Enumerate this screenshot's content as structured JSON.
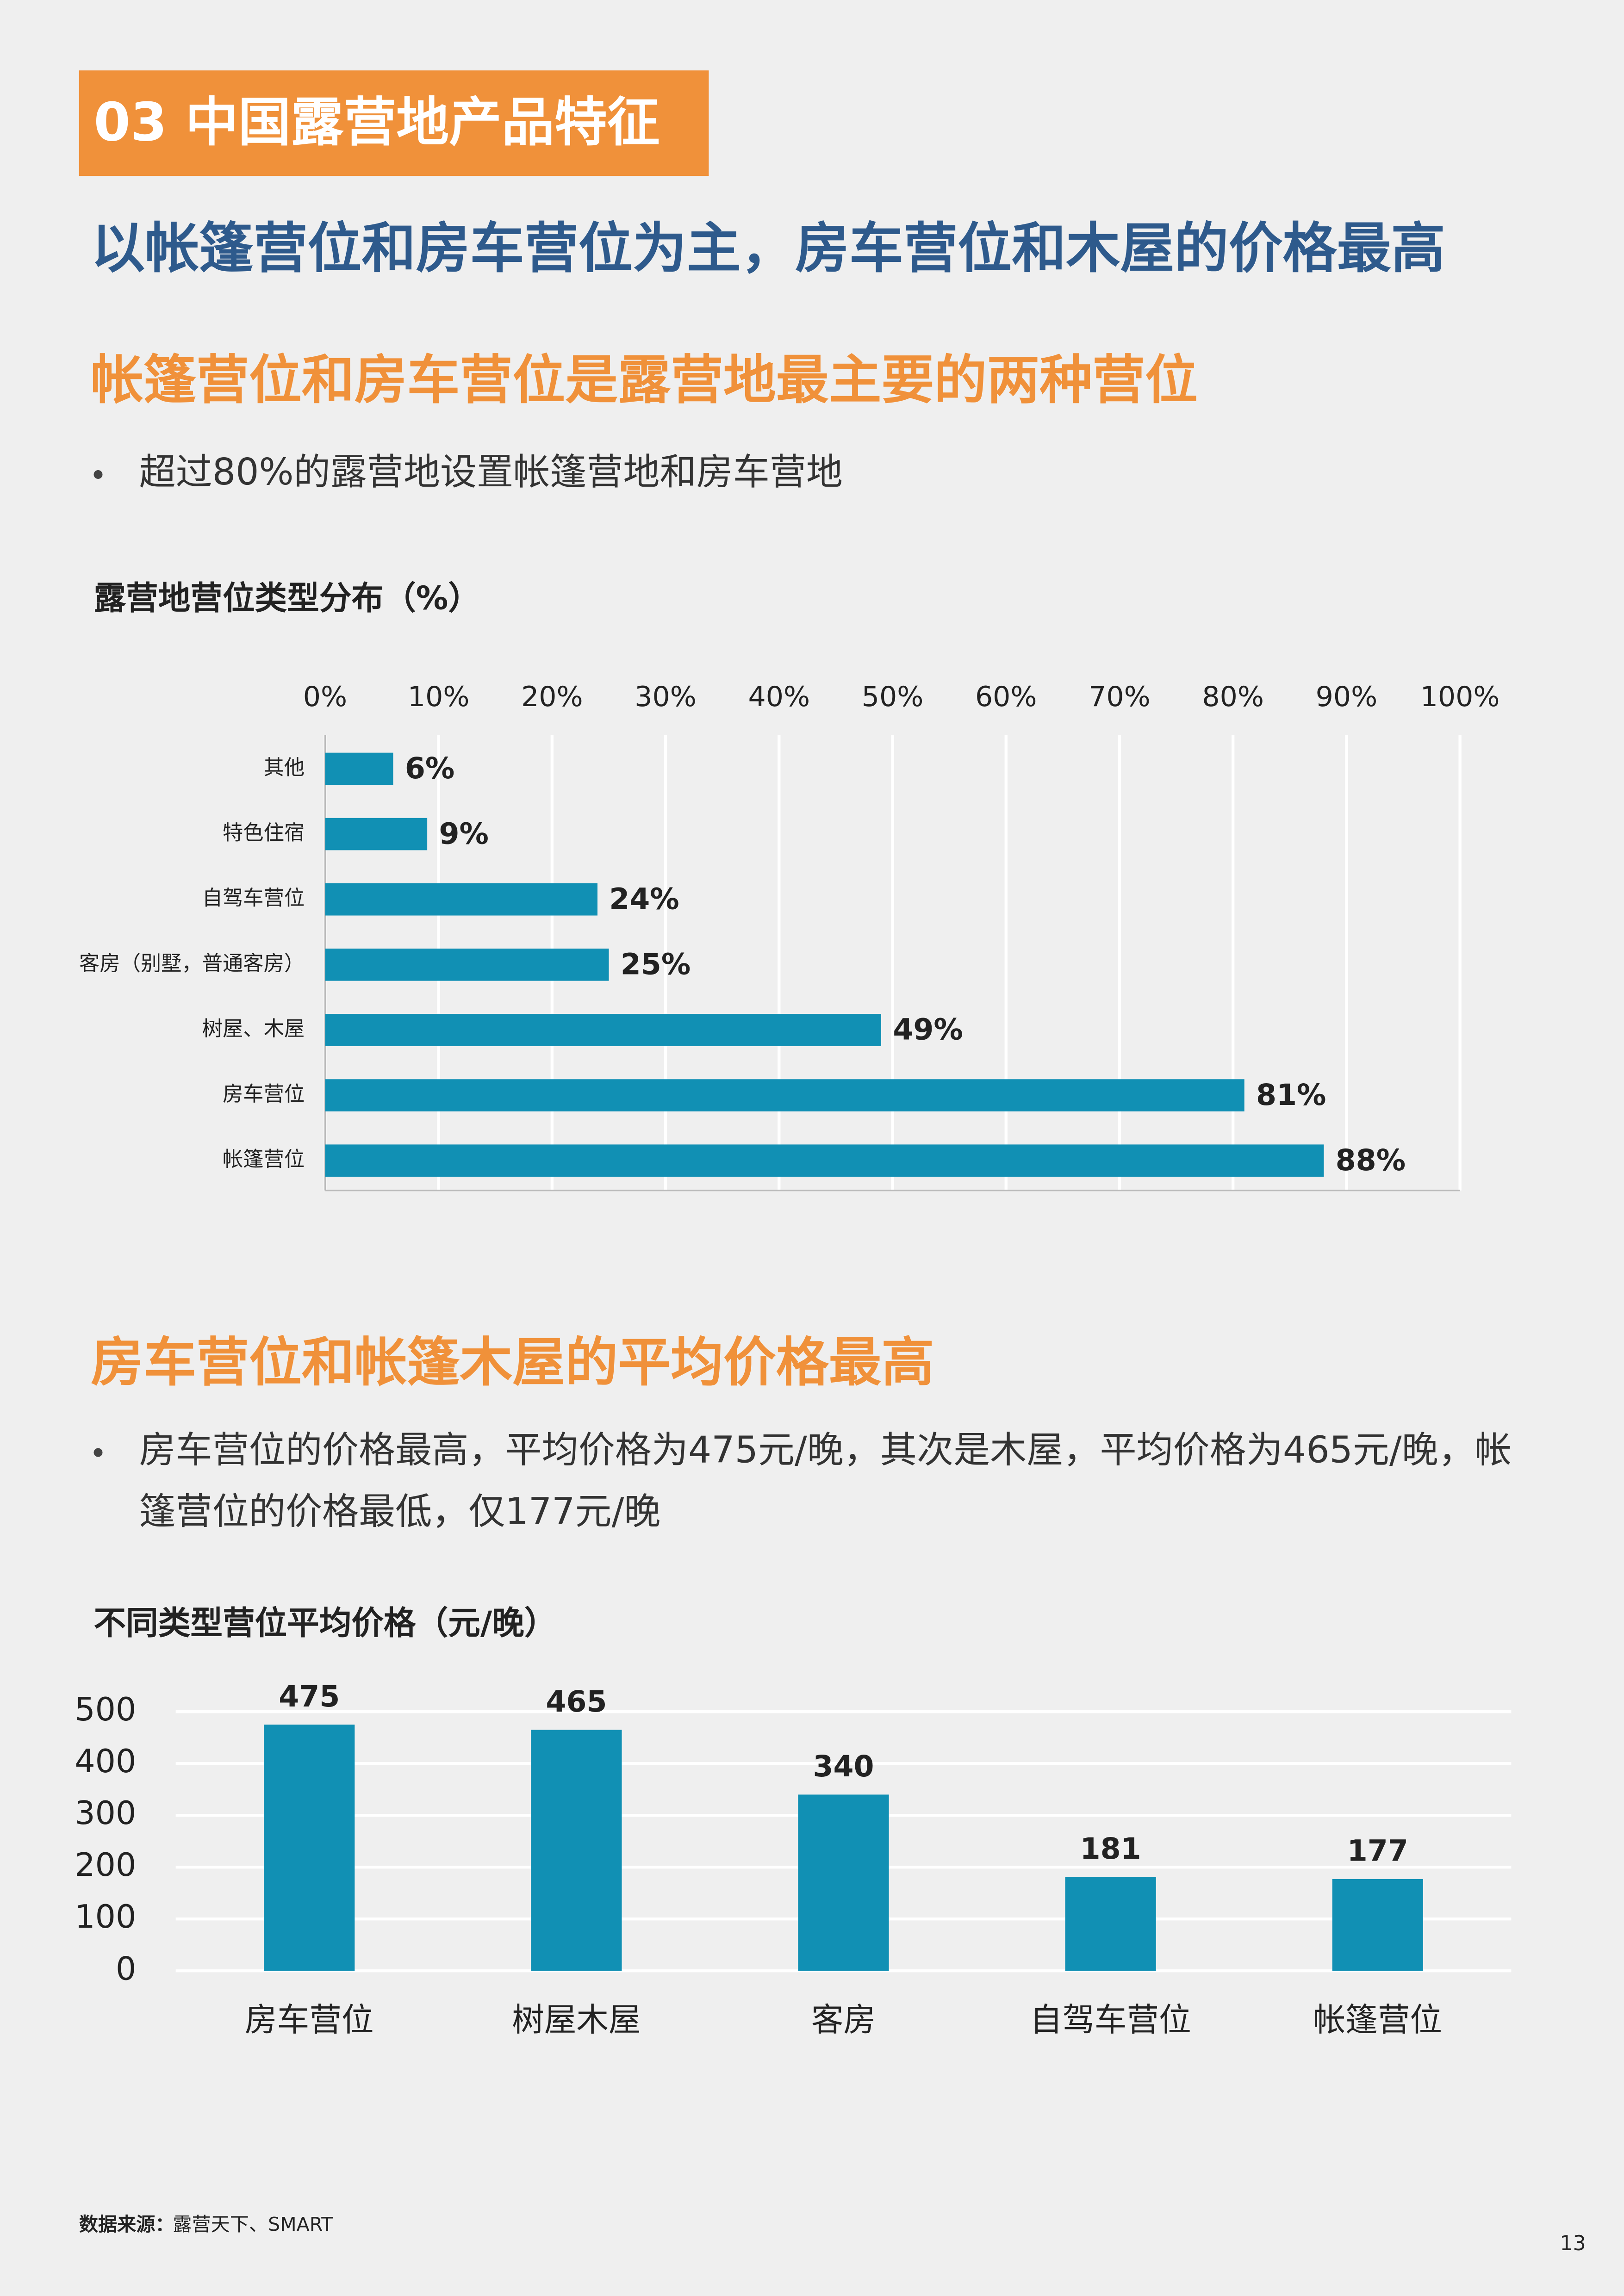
{
  "header": {
    "section": "03 中国露营地产品特征"
  },
  "headline": "以帐篷营位和房车营位为主，房车营位和木屋的价格最高",
  "section1": {
    "title": "帐篷营位和房车营位是露营地最主要的两种营位",
    "bullet": "超过80%的露营地设置帐篷营地和房车营地"
  },
  "section2": {
    "title": "房车营位和帐篷木屋的平均价格最高",
    "bullet": [
      "房车营位的价格最高，平均价格为475元/晚，其次是木屋，平均价格为465元/晚，帐",
      "篷营位的价格最低，仅177元/晚"
    ]
  },
  "chart_data": [
    {
      "type": "bar",
      "orientation": "horizontal",
      "title": "露营地营位类型分布（%）",
      "categories": [
        "其他",
        "特色住宿",
        "自驾车营位",
        "客房（别墅，普通客房）",
        "树屋、木屋",
        "房车营位",
        "帐篷营位"
      ],
      "values": [
        6,
        9,
        24,
        25,
        49,
        81,
        88
      ],
      "value_labels": [
        "6%",
        "9%",
        "24%",
        "25%",
        "49%",
        "81%",
        "88%"
      ],
      "color": "#1190b4",
      "xlim": [
        0,
        100
      ],
      "xticks": [
        {
          "value": 0,
          "label": "0%"
        },
        {
          "value": 10,
          "label": "10%"
        },
        {
          "value": 20,
          "label": "20%"
        },
        {
          "value": 30,
          "label": "30%"
        },
        {
          "value": 40,
          "label": "40%"
        },
        {
          "value": 50,
          "label": "50%"
        },
        {
          "value": 60,
          "label": "60%"
        },
        {
          "value": 70,
          "label": "70%"
        },
        {
          "value": 80,
          "label": "80%"
        },
        {
          "value": 90,
          "label": "90%"
        },
        {
          "value": 100,
          "label": "100%"
        }
      ],
      "grid": true
    },
    {
      "type": "bar",
      "orientation": "vertical",
      "title": "不同类型营位平均价格（元/晚）",
      "categories": [
        "房车营位",
        "树屋木屋",
        "客房",
        "自驾车营位",
        "帐篷营位"
      ],
      "values": [
        475,
        465,
        340,
        181,
        177
      ],
      "color": "#1190b4",
      "ylim": [
        0,
        500
      ],
      "yticks": [
        0,
        100,
        200,
        300,
        400,
        500
      ],
      "grid": true
    }
  ],
  "source": {
    "label": "数据来源：",
    "text": "露营天下、SMART"
  },
  "page_number": "13"
}
